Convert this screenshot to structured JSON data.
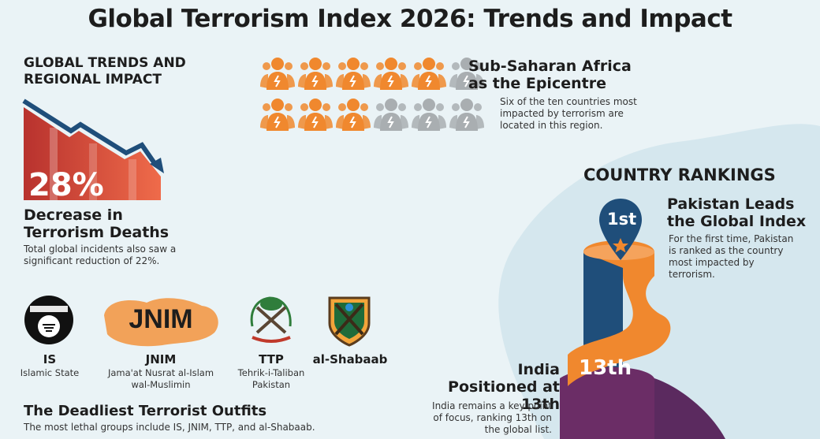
{
  "title": "Global Terrorism Index 2026: Trends and Impact",
  "trends": {
    "heading": "GLOBAL TRENDS AND REGIONAL IMPACT",
    "percent": "28%",
    "subheading": "Decrease in Terrorism Deaths",
    "description": "Total global incidents also saw a significant reduction of 22%."
  },
  "africa": {
    "heading": "Sub-Saharan Africa as the Epicentre",
    "description": "Six of the ten countries most impacted by terrorism are located in this region.",
    "highlighted_count": 6,
    "total_count": 10,
    "highlight_color": "#f0882e",
    "muted_color": "#a9aeb1"
  },
  "groups": {
    "items": [
      {
        "abbr": "IS",
        "name": "Islamic State",
        "logo_text": "لا إله إلا الله"
      },
      {
        "abbr": "JNIM",
        "name": "Jama'at Nusrat al-Islam wal-Muslimin",
        "logo_text": "JNIM"
      },
      {
        "abbr": "TTP",
        "name": "Tehrik-i-Taliban Pakistan"
      },
      {
        "abbr": "al-Shabaab",
        "name": ""
      }
    ],
    "heading": "The Deadliest Terrorist Outfits",
    "description": "The most lethal groups include IS, JNIM, TTP, and al-Shabaab."
  },
  "rankings": {
    "heading": "COUNTRY RANKINGS",
    "pakistan": {
      "rank": "1st",
      "heading": "Pakistan Leads the Global Index",
      "description": "For the first time, Pakistan is ranked as the country most impacted by terrorism."
    },
    "india": {
      "rank": "13th",
      "heading": "India Positioned at 13th",
      "description": "India remains a key point of focus, ranking 13th on the global list."
    }
  },
  "colors": {
    "orange": "#f0882e",
    "navy": "#1f4e7a",
    "purple": "#6b2d66",
    "red": "#d9453c"
  }
}
